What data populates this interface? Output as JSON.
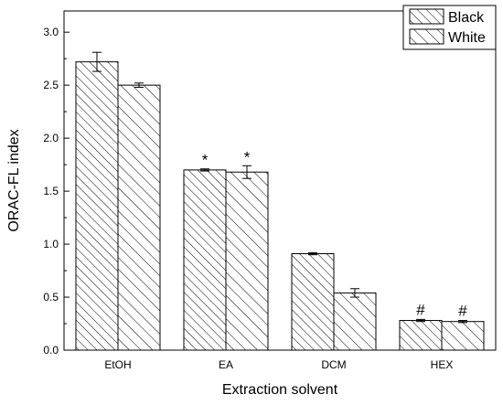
{
  "chart_data": {
    "type": "bar",
    "xlabel": "Extraction solvent",
    "ylabel": "ORAC-FL index",
    "categories": [
      "EtOH",
      "EA",
      "DCM",
      "HEX"
    ],
    "ylim": [
      0,
      3.2
    ],
    "yticks": [
      "0.0",
      "0.5",
      "1.0",
      "1.5",
      "2.0",
      "2.5",
      "3.0"
    ],
    "legend_position": "top-right",
    "series": [
      {
        "name": "Black",
        "pattern": "hatch-back-diagonal-dense",
        "values": [
          2.72,
          1.7,
          0.91,
          0.28
        ],
        "errors": [
          0.09,
          0.01,
          0.01,
          0.01
        ],
        "annotations": [
          "",
          "*",
          "",
          "#"
        ]
      },
      {
        "name": "White",
        "pattern": "hatch-back-diagonal-sparse",
        "values": [
          2.5,
          1.68,
          0.54,
          0.27
        ],
        "errors": [
          0.02,
          0.06,
          0.04,
          0.01
        ],
        "annotations": [
          "",
          "*",
          "",
          "#"
        ]
      }
    ]
  }
}
